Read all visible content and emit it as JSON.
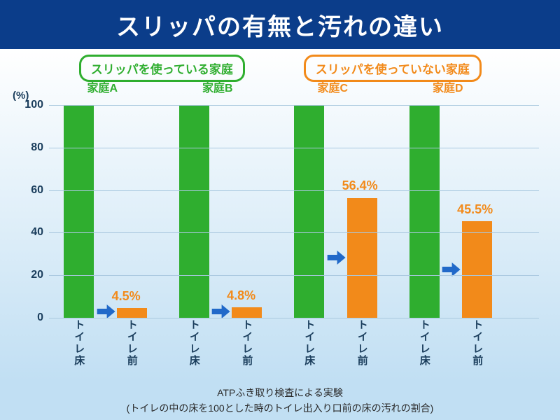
{
  "colors": {
    "title_bg": "#0b3d8a",
    "title_text": "#ffffff",
    "chart_bg_top": "#ffffff",
    "chart_bg_bottom": "#c1dff3",
    "grid": "#a9c8df",
    "axis_text": "#1a3d5c",
    "green": "#2fae2f",
    "orange": "#f28a1a",
    "arrow": "#2169c9",
    "footer_text": "#2a2a2a"
  },
  "title": "スリッパの有無と汚れの違い",
  "title_fontsize": 34,
  "legend_green": "スリッパを使っている家庭",
  "legend_orange": "スリッパを使っていない家庭",
  "legend_fontsize": 17,
  "households": [
    "家庭A",
    "家庭B",
    "家庭C",
    "家庭D"
  ],
  "household_fontsize": 16,
  "y_unit": "(%)",
  "y_unit_fontsize": 15,
  "ylim": [
    0,
    100
  ],
  "ytick_step": 20,
  "tick_fontsize": 16,
  "chart": {
    "bar_width_pct": 6.2,
    "pair_gap_pct": 4.6,
    "group_gap_pct": 6.5,
    "left_pad_pct": 3.0,
    "groups": [
      {
        "inside": 100,
        "outside": 4.5,
        "outside_label": "4.5%"
      },
      {
        "inside": 100,
        "outside": 4.8,
        "outside_label": "4.8%"
      },
      {
        "inside": 100,
        "outside": 56.4,
        "outside_label": "56.4%"
      },
      {
        "inside": 100,
        "outside": 45.5,
        "outside_label": "45.5%"
      }
    ]
  },
  "value_label_fontsize": 18,
  "x_labels": {
    "inside": "トイレ床",
    "outside": "トイレ前"
  },
  "x_label_fontsize": 15,
  "footer1": "ATPふき取り検査による実験",
  "footer2": "(トイレの中の床を100とした時のトイレ出入り口前の床の汚れの割合)",
  "footer_fontsize": 14
}
